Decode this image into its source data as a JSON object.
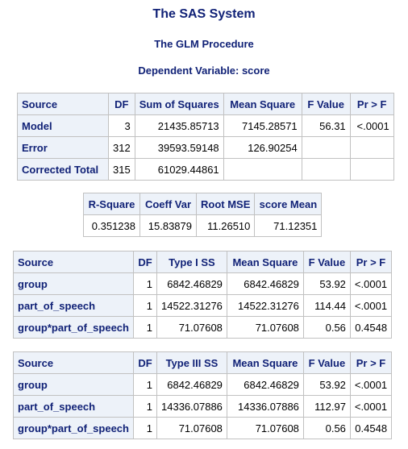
{
  "titles": {
    "system": "The SAS System",
    "procedure": "The GLM Procedure",
    "dependent": "Dependent Variable: score"
  },
  "anova": {
    "headers": [
      "Source",
      "DF",
      "Sum of Squares",
      "Mean Square",
      "F Value",
      "Pr > F"
    ],
    "rows": [
      {
        "source": "Model",
        "df": "3",
        "ss": "21435.85713",
        "ms": "7145.28571",
        "f": "56.31",
        "p": "<.0001"
      },
      {
        "source": "Error",
        "df": "312",
        "ss": "39593.59148",
        "ms": "126.90254",
        "f": "",
        "p": ""
      },
      {
        "source": "Corrected Total",
        "df": "315",
        "ss": "61029.44861",
        "ms": "",
        "f": "",
        "p": ""
      }
    ]
  },
  "fit": {
    "headers": [
      "R-Square",
      "Coeff Var",
      "Root MSE",
      "score Mean"
    ],
    "values": [
      "0.351238",
      "15.83879",
      "11.26510",
      "71.12351"
    ]
  },
  "type1": {
    "headers": [
      "Source",
      "DF",
      "Type I SS",
      "Mean Square",
      "F Value",
      "Pr > F"
    ],
    "rows": [
      {
        "source": "group",
        "df": "1",
        "ss": "6842.46829",
        "ms": "6842.46829",
        "f": "53.92",
        "p": "<.0001"
      },
      {
        "source": "part_of_speech",
        "df": "1",
        "ss": "14522.31276",
        "ms": "14522.31276",
        "f": "114.44",
        "p": "<.0001"
      },
      {
        "source": "group*part_of_speech",
        "df": "1",
        "ss": "71.07608",
        "ms": "71.07608",
        "f": "0.56",
        "p": "0.4548"
      }
    ]
  },
  "type3": {
    "headers": [
      "Source",
      "DF",
      "Type III SS",
      "Mean Square",
      "F Value",
      "Pr > F"
    ],
    "rows": [
      {
        "source": "group",
        "df": "1",
        "ss": "6842.46829",
        "ms": "6842.46829",
        "f": "53.92",
        "p": "<.0001"
      },
      {
        "source": "part_of_speech",
        "df": "1",
        "ss": "14336.07886",
        "ms": "14336.07886",
        "f": "112.97",
        "p": "<.0001"
      },
      {
        "source": "group*part_of_speech",
        "df": "1",
        "ss": "71.07608",
        "ms": "71.07608",
        "f": "0.56",
        "p": "0.4548"
      }
    ]
  },
  "colors": {
    "title": "#112277",
    "header_bg": "#edf2f9",
    "grid": "#c1c1c1"
  }
}
